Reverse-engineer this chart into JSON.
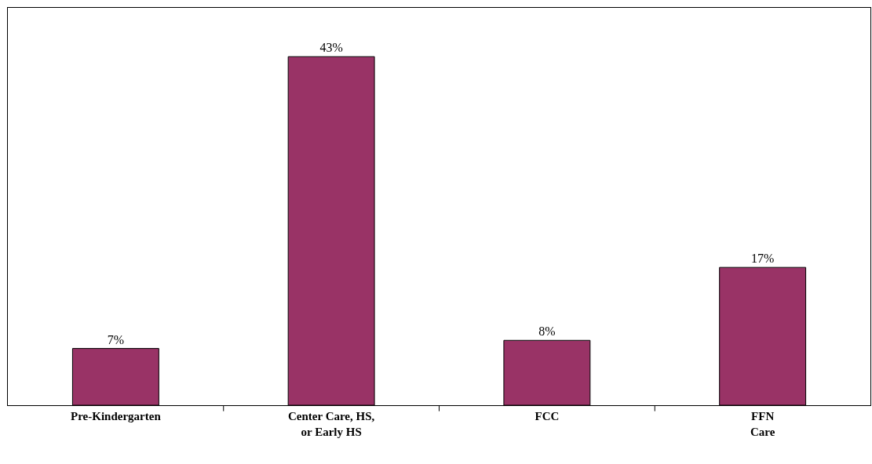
{
  "chart_data": {
    "type": "bar",
    "categories": [
      "Pre-Kindergarten",
      "Center Care, HS,\nor Early HS",
      "FCC",
      "FFN\nCare"
    ],
    "values": [
      7,
      43,
      8,
      17
    ],
    "value_labels": [
      "7%",
      "43%",
      "8%",
      "17%"
    ],
    "color": "#993366"
  }
}
